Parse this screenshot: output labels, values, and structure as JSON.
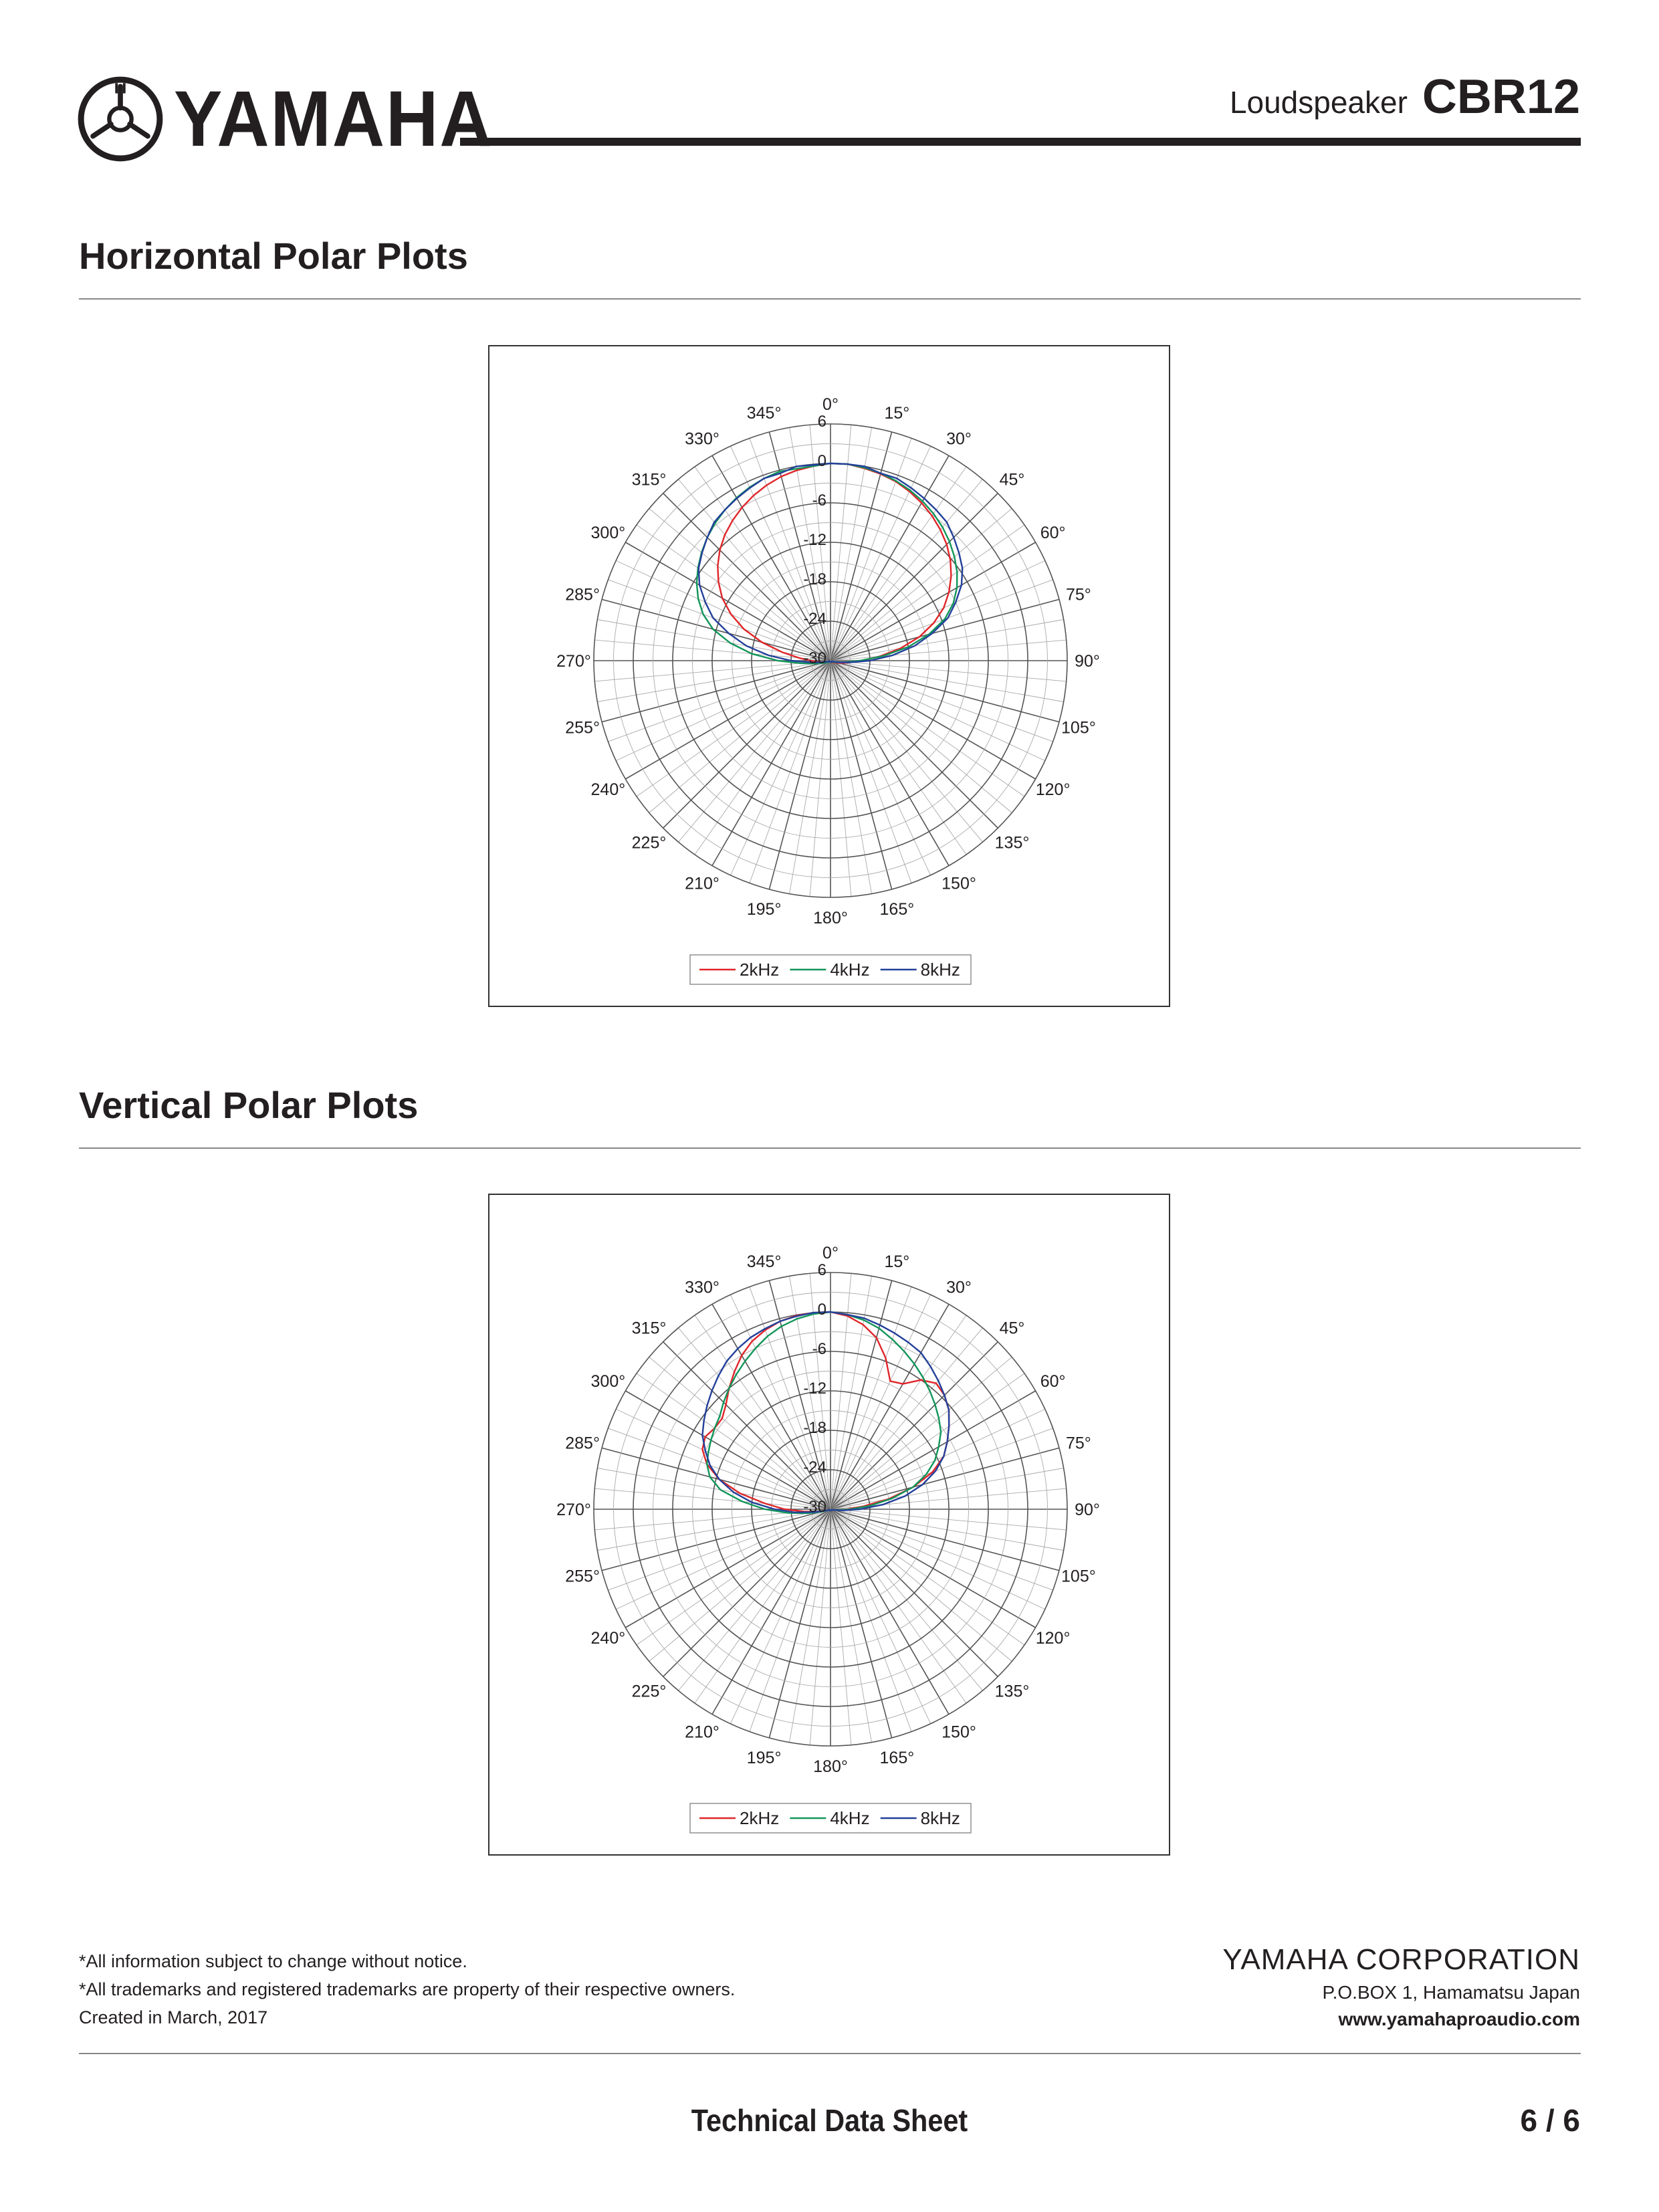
{
  "header": {
    "brand": "YAMAHA",
    "product_kind": "Loudspeaker",
    "product_model": "CBR12"
  },
  "sections": [
    {
      "title": "Horizontal Polar Plots"
    },
    {
      "title": "Vertical Polar Plots"
    }
  ],
  "colors": {
    "2kHz": "#e0262a",
    "4kHz": "#12955a",
    "8kHz": "#23409a"
  },
  "chart_data": [
    {
      "type": "polar",
      "title": "",
      "angle_tick_labels": [
        "0°",
        "15°",
        "30°",
        "45°",
        "60°",
        "75°",
        "90°",
        "105°",
        "120°",
        "135°",
        "150°",
        "165°",
        "180°",
        "195°",
        "210°",
        "225°",
        "240°",
        "255°",
        "270°",
        "285°",
        "300°",
        "315°",
        "330°",
        "345°"
      ],
      "radial_tick_labels": [
        "6",
        "0",
        "-6",
        "-12",
        "-18",
        "-24",
        "-30"
      ],
      "rlim": [
        -30,
        6
      ],
      "legend": "bottom",
      "legend_entries": [
        "2kHz",
        "4kHz",
        "8kHz"
      ],
      "theta_step_deg": 5,
      "series": [
        {
          "name": "2kHz",
          "color": "#e0262a",
          "values": [
            0,
            0,
            -0.3,
            -0.6,
            -1,
            -1.6,
            -2.3,
            -3.1,
            -4,
            -5,
            -6.2,
            -7.6,
            -9.2,
            -11,
            -13.3,
            -16,
            -19.2,
            -22.5,
            -25.2,
            -27,
            -28,
            -28.6,
            -29,
            -29.3,
            -29.4,
            -29.5,
            -29.6,
            -29.7,
            -29.8,
            -29.8,
            -29.8,
            -29.8,
            -29.8,
            -29.8,
            -29.8,
            -29.8,
            -29.8,
            -29.8,
            -29.8,
            -29.8,
            -29.8,
            -29.8,
            -29.8,
            -29.8,
            -29.8,
            -29.8,
            -29.7,
            -29.6,
            -29.5,
            -29.4,
            -29.3,
            -29,
            -28.6,
            -28,
            -27,
            -25.2,
            -22.5,
            -19.2,
            -16,
            -13.3,
            -11,
            -9.2,
            -7.6,
            -6.2,
            -5,
            -4,
            -3.1,
            -2.3,
            -1.6,
            -1,
            -0.6,
            -0.3
          ]
        },
        {
          "name": "4kHz",
          "color": "#12955a",
          "values": [
            0,
            0,
            -0.2,
            -0.5,
            -0.9,
            -1.4,
            -2,
            -2.7,
            -3.5,
            -4.4,
            -5.4,
            -6.5,
            -7.8,
            -9.4,
            -11.5,
            -14.5,
            -18,
            -22,
            -25.5,
            -27.5,
            -28.5,
            -29,
            -29.3,
            -29.5,
            -29.6,
            -29.7,
            -29.8,
            -29.8,
            -29.8,
            -29.8,
            -29.8,
            -29.8,
            -29.8,
            -29.8,
            -29.8,
            -29.8,
            -29.8,
            -29.8,
            -29.8,
            -29.8,
            -29.8,
            -29.8,
            -29.8,
            -29.8,
            -29.8,
            -29.8,
            -29.7,
            -29.6,
            -29.5,
            -29.3,
            -29,
            -28.5,
            -27.5,
            -25.5,
            -22,
            -18,
            -14.5,
            -11.5,
            -9.4,
            -7.8,
            -6.5,
            -5.4,
            -4.4,
            -3.5,
            -2.7,
            -2,
            -1.4,
            -0.9,
            -0.5,
            -0.2
          ]
        },
        {
          "name": "8kHz",
          "color": "#23409a",
          "values": [
            0,
            0,
            0,
            -0.5,
            -0.5,
            -1,
            -1.5,
            -2,
            -2.5,
            -3.5,
            -4.5,
            -5.5,
            -7,
            -9,
            -11,
            -14,
            -17,
            -20.5,
            -24,
            -27,
            -28.5,
            -29.3,
            -29.6,
            -29.8,
            -29.8,
            -29.8,
            -29.8,
            -29.8,
            -29.8,
            -29.8,
            -29.8,
            -29.8,
            -29.8,
            -29.8,
            -29.8,
            -29.8,
            -29.8,
            -29.8,
            -29.8,
            -29.8,
            -29.8,
            -29.8,
            -29.8,
            -29.8,
            -29.8,
            -29.8,
            -29.8,
            -29.8,
            -29.8,
            -29.8,
            -29.6,
            -29.3,
            -28.5,
            -27,
            -24,
            -20.5,
            -17,
            -14,
            -11,
            -9,
            -7,
            -5.5,
            -4.5,
            -3.5,
            -2.5,
            -2,
            -1.5,
            -1,
            -0.5,
            -0.5,
            0
          ]
        }
      ]
    },
    {
      "type": "polar",
      "title": "",
      "angle_tick_labels": [
        "0°",
        "15°",
        "30°",
        "45°",
        "60°",
        "75°",
        "90°",
        "105°",
        "120°",
        "135°",
        "150°",
        "165°",
        "180°",
        "195°",
        "210°",
        "225°",
        "240°",
        "255°",
        "270°",
        "285°",
        "300°",
        "315°",
        "330°",
        "345°"
      ],
      "radial_tick_labels": [
        "6",
        "0",
        "-6",
        "-12",
        "-18",
        "-24",
        "-30"
      ],
      "rlim": [
        -30,
        6
      ],
      "legend": "bottom",
      "legend_entries": [
        "2kHz",
        "4kHz",
        "8kHz"
      ],
      "theta_step_deg": 5,
      "series": [
        {
          "name": "2kHz",
          "color": "#e0262a",
          "values": [
            0,
            -0.5,
            -1.5,
            -3,
            -5.5,
            -8.5,
            -8,
            -6,
            -5,
            -5.5,
            -6.5,
            -8,
            -9.5,
            -11,
            -13.5,
            -17,
            -21,
            -25,
            -27.5,
            -28.8,
            -29.4,
            -29.6,
            -29.7,
            -29.8,
            -29.8,
            -29.8,
            -29.8,
            -29.8,
            -29.8,
            -29.8,
            -29.8,
            -29.8,
            -29.8,
            -29.8,
            -29.8,
            -29.8,
            -29.8,
            -29.8,
            -29.8,
            -29.8,
            -29.8,
            -29.8,
            -29.8,
            -29.8,
            -29.8,
            -29.8,
            -29.8,
            -29.8,
            -29.8,
            -29.8,
            -29.6,
            -29,
            -28,
            -26,
            -23,
            -20,
            -16,
            -12.5,
            -10,
            -8.5,
            -8,
            -8.5,
            -8.5,
            -7.5,
            -6,
            -4.5,
            -3,
            -1.8,
            -1,
            -0.4,
            -0.1,
            0
          ]
        },
        {
          "name": "4kHz",
          "color": "#12955a",
          "values": [
            0,
            -0.3,
            -0.8,
            -1.5,
            -2.5,
            -3.5,
            -4.5,
            -5.5,
            -6.5,
            -7.5,
            -8.5,
            -9.5,
            -11,
            -12.5,
            -14.5,
            -17,
            -20.5,
            -24,
            -27,
            -28.7,
            -29.4,
            -29.7,
            -29.8,
            -29.8,
            -29.8,
            -29.8,
            -29.8,
            -29.8,
            -29.8,
            -29.8,
            -29.8,
            -29.8,
            -29.8,
            -29.8,
            -29.8,
            -29.8,
            -29.8,
            -29.8,
            -29.8,
            -29.8,
            -29.8,
            -29.8,
            -29.8,
            -29.8,
            -29.8,
            -29.8,
            -29.8,
            -29.8,
            -29.8,
            -29.7,
            -29.4,
            -28.5,
            -26.5,
            -23.5,
            -20,
            -16.5,
            -13,
            -11,
            -10,
            -9.5,
            -9,
            -8.5,
            -8,
            -7,
            -6,
            -5,
            -4,
            -3,
            -2,
            -1.2,
            -0.6,
            -0.2
          ]
        },
        {
          "name": "8kHz",
          "color": "#23409a",
          "values": [
            0,
            -0.3,
            -0.5,
            -1,
            -1.5,
            -2,
            -2.5,
            -3.5,
            -4.5,
            -5.5,
            -6.5,
            -8,
            -9.5,
            -11,
            -13,
            -15.5,
            -18.5,
            -22,
            -25.5,
            -28,
            -29.2,
            -29.6,
            -29.8,
            -29.8,
            -29.8,
            -29.8,
            -29.8,
            -29.8,
            -29.8,
            -29.8,
            -29.8,
            -29.8,
            -29.8,
            -29.8,
            -29.8,
            -29.8,
            -29.8,
            -29.8,
            -29.8,
            -29.8,
            -29.8,
            -29.8,
            -29.8,
            -29.8,
            -29.8,
            -29.8,
            -29.8,
            -29.8,
            -29.8,
            -29.8,
            -29.6,
            -29,
            -27.5,
            -24.5,
            -21.5,
            -18,
            -15,
            -12.5,
            -10.5,
            -9,
            -7.5,
            -6.5,
            -5.5,
            -4.5,
            -3.5,
            -2.5,
            -1.8,
            -1.2,
            -0.8,
            -0.4,
            -0.2,
            0
          ]
        }
      ]
    }
  ],
  "footer": {
    "notes": [
      "*All information subject to change without notice.",
      "*All trademarks and registered trademarks are property of their respective owners.",
      "Created in March, 2017"
    ],
    "corp_name": "YAMAHA CORPORATION",
    "corp_address": "P.O.BOX 1, Hamamatsu Japan",
    "corp_url": "www.yamahaproaudio.com",
    "doc_title": "Technical Data Sheet",
    "page": "6 / 6"
  }
}
